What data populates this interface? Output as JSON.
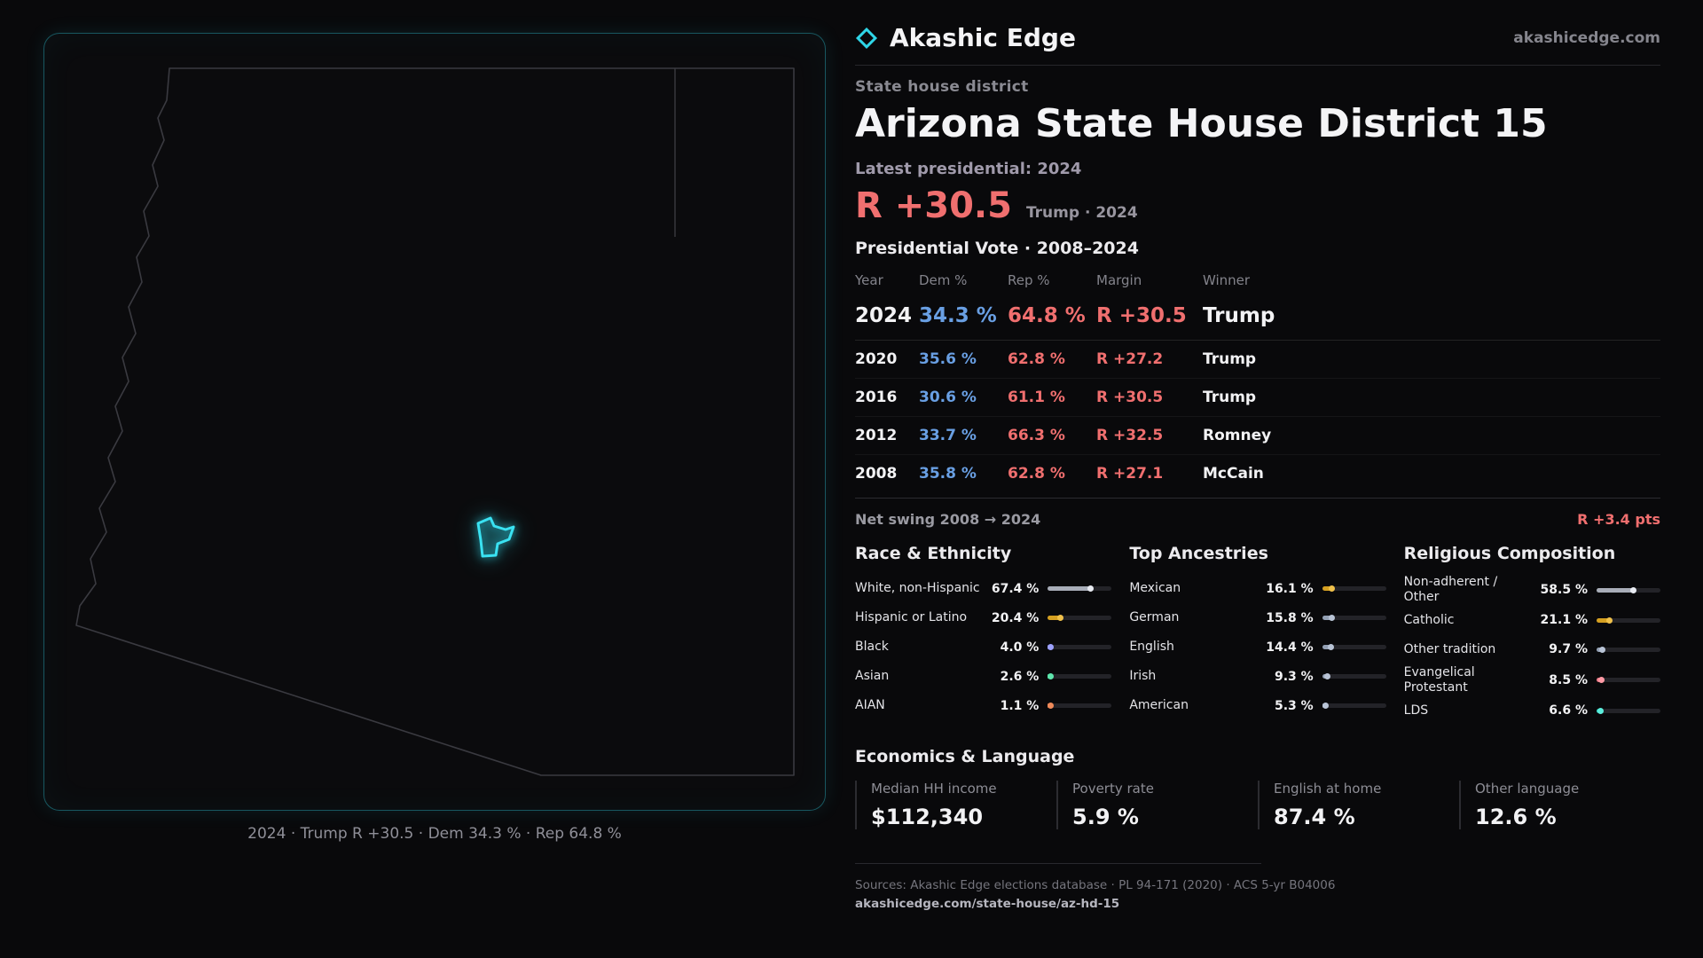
{
  "brand": {
    "name": "Akashic Edge",
    "domain": "akashicedge.com",
    "accent_color": "#2fd6e8"
  },
  "page": {
    "kicker": "State house district",
    "title": "Arizona State House District 15",
    "latest_label": "Latest presidential: 2024",
    "latest_margin": "R +30.5",
    "latest_margin_note": "Trump · 2024"
  },
  "map": {
    "state": "Arizona",
    "caption": "2024 · Trump R +30.5 · Dem 34.3 % · Rep 64.8 %",
    "outline_color": "#3a3a40",
    "district_color": "#2fd6e8"
  },
  "vote_table": {
    "title": "Presidential Vote · 2008–2024",
    "headers": [
      "Year",
      "Dem %",
      "Rep %",
      "Margin",
      "Winner"
    ],
    "rows": [
      {
        "year": "2024",
        "dem": "34.3 %",
        "rep": "64.8 %",
        "margin": "R +30.5",
        "winner": "Trump"
      },
      {
        "year": "2020",
        "dem": "35.6 %",
        "rep": "62.8 %",
        "margin": "R +27.2",
        "winner": "Trump"
      },
      {
        "year": "2016",
        "dem": "30.6 %",
        "rep": "61.1 %",
        "margin": "R +30.5",
        "winner": "Trump"
      },
      {
        "year": "2012",
        "dem": "33.7 %",
        "rep": "66.3 %",
        "margin": "R +32.5",
        "winner": "Romney"
      },
      {
        "year": "2008",
        "dem": "35.8 %",
        "rep": "62.8 %",
        "margin": "R +27.1",
        "winner": "McCain"
      }
    ]
  },
  "net_swing": {
    "label": "Net swing 2008 → 2024",
    "value": "R +3.4 pts"
  },
  "demographics": {
    "race": {
      "title": "Race & Ethnicity",
      "rows": [
        {
          "label": "White, non-Hispanic",
          "value": "67.4 %",
          "pct": 67.4,
          "color": "#a8adb8",
          "dot": "#e8ebf2"
        },
        {
          "label": "Hispanic or Latino",
          "value": "20.4 %",
          "pct": 20.4,
          "color": "#d5a021",
          "dot": "#f0c14b"
        },
        {
          "label": "Black",
          "value": "4.0 %",
          "pct": 4.0,
          "color": "#8186f2",
          "dot": "#9da1ff"
        },
        {
          "label": "Asian",
          "value": "2.6 %",
          "pct": 2.6,
          "color": "#33cf8e",
          "dot": "#5fe6ad"
        },
        {
          "label": "AIAN",
          "value": "1.1 %",
          "pct": 1.1,
          "color": "#d2693c",
          "dot": "#ef8a5a"
        }
      ]
    },
    "ancestries": {
      "title": "Top Ancestries",
      "rows": [
        {
          "label": "Mexican",
          "value": "16.1 %",
          "pct": 16.1,
          "color": "#d5a021",
          "dot": "#f0c14b"
        },
        {
          "label": "German",
          "value": "15.8 %",
          "pct": 15.8,
          "color": "#93a0b4",
          "dot": "#b9c4d6"
        },
        {
          "label": "English",
          "value": "14.4 %",
          "pct": 14.4,
          "color": "#93a0b4",
          "dot": "#b9c4d6"
        },
        {
          "label": "Irish",
          "value": "9.3 %",
          "pct": 9.3,
          "color": "#93a0b4",
          "dot": "#b9c4d6"
        },
        {
          "label": "American",
          "value": "5.3 %",
          "pct": 5.3,
          "color": "#93a0b4",
          "dot": "#b9c4d6"
        }
      ]
    },
    "religion": {
      "title": "Religious Composition",
      "rows": [
        {
          "label": "Non-adherent / Other",
          "value": "58.5 %",
          "pct": 58.5,
          "color": "#a8adb8",
          "dot": "#e8ebf2"
        },
        {
          "label": "Catholic",
          "value": "21.1 %",
          "pct": 21.1,
          "color": "#d5a021",
          "dot": "#f0c14b"
        },
        {
          "label": "Other tradition",
          "value": "9.7 %",
          "pct": 9.7,
          "color": "#93a0b4",
          "dot": "#b9c4d6"
        },
        {
          "label": "Evangelical Protestant",
          "value": "8.5 %",
          "pct": 8.5,
          "color": "#ef7b88",
          "dot": "#ff9aa5"
        },
        {
          "label": "LDS",
          "value": "6.6 %",
          "pct": 6.6,
          "color": "#2fd4c3",
          "dot": "#5ceedd"
        }
      ]
    }
  },
  "economics": {
    "title": "Economics & Language",
    "stats": [
      {
        "label": "Median HH income",
        "value": "$112,340"
      },
      {
        "label": "Poverty rate",
        "value": "5.9 %"
      },
      {
        "label": "English at home",
        "value": "87.4 %"
      },
      {
        "label": "Other language",
        "value": "12.6 %"
      }
    ]
  },
  "footer": {
    "sources": "Sources: Akashic Edge elections database · PL 94-171 (2020) · ACS 5-yr B04006",
    "url": "akashicedge.com/state-house/az-hd-15"
  },
  "colors": {
    "dem": "#699fe3",
    "rep": "#f06f6f"
  },
  "chart_data": [
    {
      "type": "table",
      "title": "Presidential Vote · 2008–2024",
      "columns": [
        "Year",
        "Dem %",
        "Rep %",
        "Margin",
        "Winner"
      ],
      "rows": [
        [
          2024,
          34.3,
          64.8,
          "R +30.5",
          "Trump"
        ],
        [
          2020,
          35.6,
          62.8,
          "R +27.2",
          "Trump"
        ],
        [
          2016,
          30.6,
          61.1,
          "R +30.5",
          "Trump"
        ],
        [
          2012,
          33.7,
          66.3,
          "R +32.5",
          "Romney"
        ],
        [
          2008,
          35.8,
          62.8,
          "R +27.1",
          "McCain"
        ]
      ],
      "note": "Net swing 2008 → 2024: R +3.4 pts"
    },
    {
      "type": "bar",
      "title": "Race & Ethnicity",
      "categories": [
        "White, non-Hispanic",
        "Hispanic or Latino",
        "Black",
        "Asian",
        "AIAN"
      ],
      "values": [
        67.4,
        20.4,
        4.0,
        2.6,
        1.1
      ],
      "unit": "%",
      "xlim": [
        0,
        100
      ],
      "orientation": "horizontal"
    },
    {
      "type": "bar",
      "title": "Top Ancestries",
      "categories": [
        "Mexican",
        "German",
        "English",
        "Irish",
        "American"
      ],
      "values": [
        16.1,
        15.8,
        14.4,
        9.3,
        5.3
      ],
      "unit": "%",
      "xlim": [
        0,
        100
      ],
      "orientation": "horizontal"
    },
    {
      "type": "bar",
      "title": "Religious Composition",
      "categories": [
        "Non-adherent / Other",
        "Catholic",
        "Other tradition",
        "Evangelical Protestant",
        "LDS"
      ],
      "values": [
        58.5,
        21.1,
        9.7,
        8.5,
        6.6
      ],
      "unit": "%",
      "xlim": [
        0,
        100
      ],
      "orientation": "horizontal"
    },
    {
      "type": "table",
      "title": "Economics & Language",
      "columns": [
        "Median HH income",
        "Poverty rate",
        "English at home",
        "Other language"
      ],
      "rows": [
        [
          "$112,340",
          "5.9 %",
          "87.4 %",
          "12.6 %"
        ]
      ]
    }
  ]
}
